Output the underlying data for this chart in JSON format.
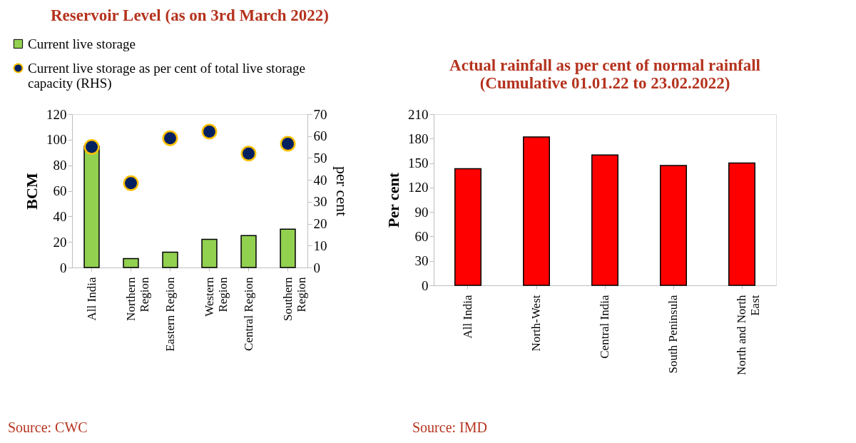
{
  "chart_data": [
    {
      "type": "bar",
      "title": "Reservoir Level (as on 3rd March 2022)",
      "categories": [
        "All India",
        "Northern\nRegion",
        "Eastern Region",
        "Western\nRegion",
        "Central Region",
        "Southern\nRegion"
      ],
      "series": [
        {
          "name": "Current live storage",
          "type": "bar",
          "color": "#92d050",
          "values": [
            95,
            7,
            12,
            22,
            25,
            30
          ]
        },
        {
          "name": "Current live storage as per cent of total live storage\ncapacity (RHS)",
          "type": "scatter",
          "axis": "y2",
          "color": "#002060",
          "values": [
            55,
            38.5,
            59,
            62,
            52,
            56.5
          ]
        }
      ],
      "ylabel": "BCM",
      "y2label": "per cent",
      "ylim": [
        0,
        120
      ],
      "yticks": [
        0,
        20,
        40,
        60,
        80,
        100,
        120
      ],
      "y2lim": [
        0,
        70
      ],
      "y2ticks": [
        0,
        10,
        20,
        30,
        40,
        50,
        60,
        70
      ],
      "legend": "top left",
      "grid": false,
      "marker": "circle",
      "annotations": [
        "Source: CWC"
      ]
    },
    {
      "type": "bar",
      "title": "Actual rainfall as per cent of normal rainfall\n(Cumulative 01.01.22 to 23.02.2022)",
      "categories": [
        "All India",
        "North-West",
        "Central India",
        "South Peninsula",
        "North and North\nEast"
      ],
      "series": [
        {
          "color": "#ff0000",
          "values": [
            143,
            182,
            160,
            147,
            150
          ]
        }
      ],
      "ylabel": "Per cent",
      "ylim": [
        0,
        210
      ],
      "yticks": [
        0,
        30,
        60,
        90,
        120,
        150,
        180,
        210
      ],
      "grid": false,
      "annotations": [
        "Source: IMD"
      ]
    }
  ]
}
